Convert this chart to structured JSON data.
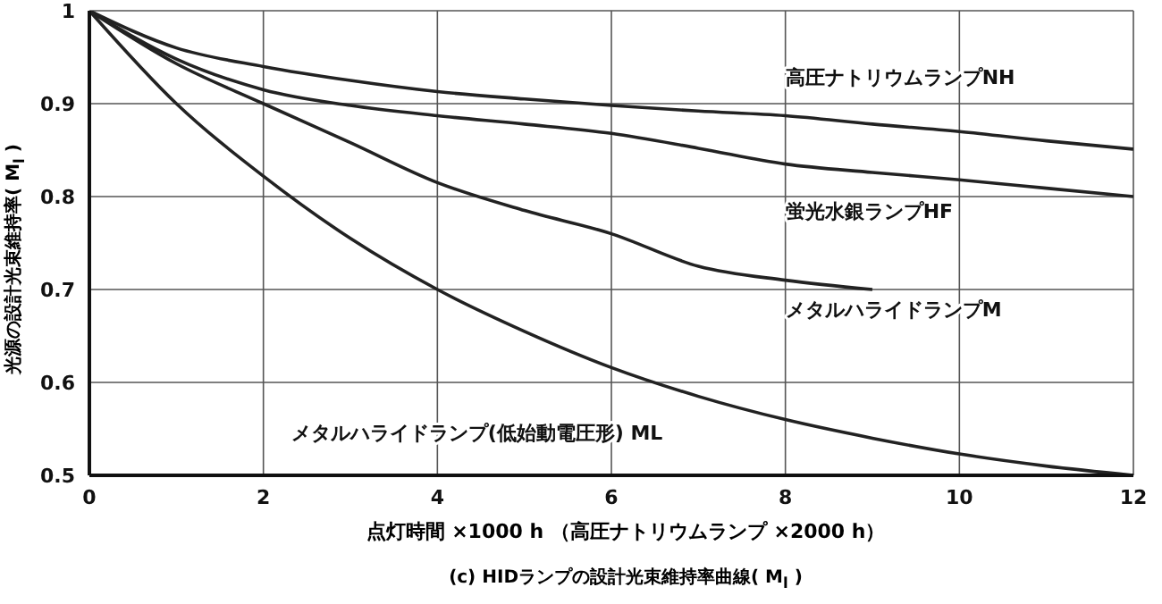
{
  "chart_data": {
    "type": "line",
    "title": "(c) HIDランプの設計光束維持率曲線( M$_{l}$ )",
    "xlabel": "点灯時間 ×1000 h （高圧ナトリウムランプ ×2000 h）",
    "ylabel": "光源の設計光束維持率( M$_{l}$ )",
    "x": [
      0,
      1,
      2,
      3,
      4,
      5,
      6,
      7,
      8,
      9,
      10,
      11,
      12
    ],
    "series": [
      {
        "name": "高圧ナトリウムランプNH",
        "color": "#222222",
        "values": [
          1,
          0.96,
          0.94,
          0.925,
          0.913,
          0.905,
          0.898,
          0.892,
          0.887,
          0.878,
          0.87,
          0.86,
          0.851
        ]
      },
      {
        "name": "蛍光水銀ランプHF",
        "color": "#222222",
        "values": [
          1,
          0.948,
          0.915,
          0.898,
          0.887,
          0.878,
          0.868,
          0.852,
          0.835,
          0.826,
          0.818,
          0.809,
          0.8
        ]
      },
      {
        "name": "メタルハライドランプM",
        "color": "#222222",
        "values": [
          1,
          0.943,
          0.9,
          0.858,
          0.815,
          0.785,
          0.76,
          0.725,
          0.71,
          0.7,
          null,
          null,
          null
        ]
      },
      {
        "name": "メタルハライドランプ(低始動電圧形) ML",
        "color": "#222222",
        "values": [
          1,
          0.9,
          0.822,
          0.755,
          0.7,
          0.655,
          0.616,
          0.585,
          0.56,
          0.54,
          0.523,
          0.51,
          0.5
        ]
      }
    ],
    "xlim": [
      0,
      12
    ],
    "xticks": [
      0,
      2,
      4,
      6,
      8,
      10,
      12
    ],
    "ylim": [
      0.5,
      1
    ],
    "yticks": [
      0.5,
      0.6,
      0.7,
      0.8,
      0.9,
      1
    ],
    "grid": true,
    "legend": false,
    "marker": "none",
    "line_style": "solid"
  }
}
